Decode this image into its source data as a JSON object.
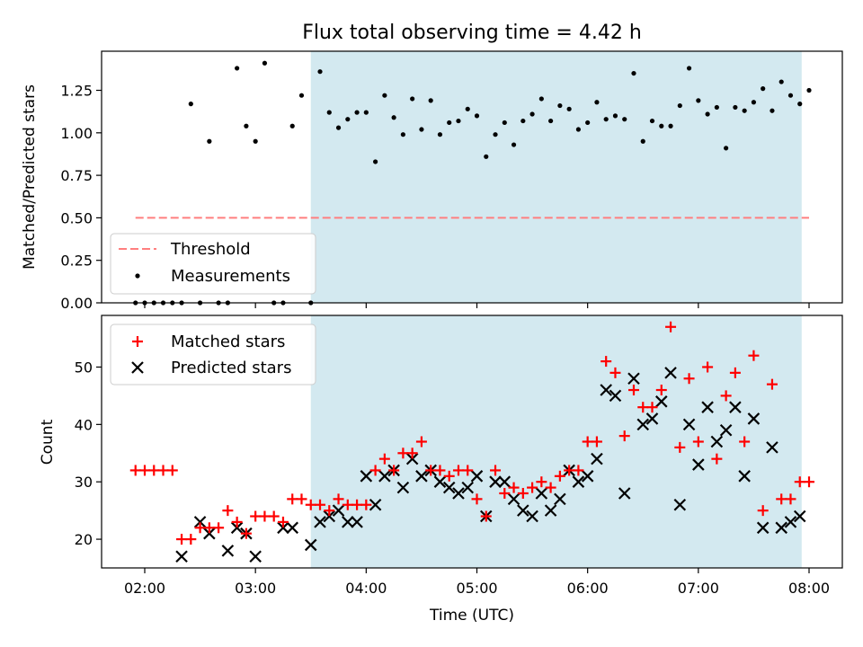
{
  "figure": {
    "title": "Flux total observing time = 4.42 h",
    "xlabel": "Time (UTC)",
    "x_ticks": [
      "02:00",
      "03:00",
      "04:00",
      "05:00",
      "06:00",
      "07:00",
      "08:00"
    ],
    "shaded_region": {
      "x_start": "03:30",
      "x_end": "07:56",
      "color": "#d3e9f0"
    }
  },
  "chart_data": [
    {
      "type": "scatter",
      "ylabel": "Matched/Predicted stars",
      "ylim": [
        0,
        1.48
      ],
      "y_ticks": [
        "0.00",
        "0.25",
        "0.50",
        "0.75",
        "1.00",
        "1.25"
      ],
      "legend": {
        "placement": "lower-left",
        "entries": [
          "Threshold",
          "Measurements"
        ]
      },
      "threshold": {
        "name": "Threshold",
        "value": 0.5,
        "x_start": "01:55",
        "x_end": "08:00",
        "color": "#ff7f7f",
        "style": "dashed"
      },
      "series": [
        {
          "name": "Measurements",
          "color": "#000000",
          "marker": "dot",
          "x": [
            "01:55",
            "02:00",
            "02:05",
            "02:10",
            "02:15",
            "02:20",
            "02:25",
            "02:30",
            "02:35",
            "02:40",
            "02:45",
            "02:50",
            "02:55",
            "03:00",
            "03:05",
            "03:10",
            "03:15",
            "03:20",
            "03:25",
            "03:30",
            "03:35",
            "03:40",
            "03:45",
            "03:50",
            "03:55",
            "04:00",
            "04:05",
            "04:10",
            "04:15",
            "04:20",
            "04:25",
            "04:30",
            "04:35",
            "04:40",
            "04:45",
            "04:50",
            "04:55",
            "05:00",
            "05:05",
            "05:10",
            "05:15",
            "05:20",
            "05:25",
            "05:30",
            "05:35",
            "05:40",
            "05:45",
            "05:50",
            "05:55",
            "06:00",
            "06:05",
            "06:10",
            "06:15",
            "06:20",
            "06:25",
            "06:30",
            "06:35",
            "06:40",
            "06:45",
            "06:50",
            "06:55",
            "07:00",
            "07:05",
            "07:10",
            "07:15",
            "07:20",
            "07:25",
            "07:30",
            "07:35",
            "07:40",
            "07:45",
            "07:50",
            "07:55",
            "08:00"
          ],
          "y": [
            0,
            0,
            0,
            0,
            0,
            0,
            1.17,
            0,
            0.95,
            0,
            0,
            1.38,
            1.04,
            0.95,
            1.41,
            0,
            0,
            1.04,
            1.22,
            0,
            1.36,
            1.12,
            1.03,
            1.08,
            1.12,
            1.12,
            0.83,
            1.22,
            1.09,
            0.99,
            1.2,
            1.02,
            1.19,
            0.99,
            1.06,
            1.07,
            1.14,
            1.1,
            0.86,
            0.99,
            1.06,
            0.93,
            1.07,
            1.11,
            1.2,
            1.07,
            1.16,
            1.14,
            1.02,
            1.06,
            1.18,
            1.08,
            1.1,
            1.08,
            1.35,
            0.95,
            1.07,
            1.04,
            1.04,
            1.16,
            1.38,
            1.19,
            1.11,
            1.15,
            0.91,
            1.15,
            1.13,
            1.18,
            1.26,
            1.13,
            1.3,
            1.22,
            1.17,
            1.25
          ]
        }
      ]
    },
    {
      "type": "scatter",
      "ylabel": "Count",
      "ylim": [
        15,
        59
      ],
      "y_ticks": [
        "20",
        "30",
        "40",
        "50"
      ],
      "legend": {
        "placement": "top-left",
        "entries": [
          "Matched stars",
          "Predicted stars"
        ]
      },
      "series": [
        {
          "name": "Matched stars",
          "color": "#ff0000",
          "marker": "plus",
          "x": [
            "01:55",
            "02:00",
            "02:05",
            "02:10",
            "02:15",
            "02:20",
            "02:25",
            "02:30",
            "02:35",
            "02:40",
            "02:45",
            "02:50",
            "02:55",
            "03:00",
            "03:05",
            "03:10",
            "03:15",
            "03:20",
            "03:25",
            "03:30",
            "03:35",
            "03:40",
            "03:45",
            "03:50",
            "03:55",
            "04:00",
            "04:05",
            "04:10",
            "04:15",
            "04:20",
            "04:25",
            "04:30",
            "04:35",
            "04:40",
            "04:45",
            "04:50",
            "04:55",
            "05:00",
            "05:05",
            "05:10",
            "05:15",
            "05:20",
            "05:25",
            "05:30",
            "05:35",
            "05:40",
            "05:45",
            "05:50",
            "05:55",
            "06:00",
            "06:05",
            "06:10",
            "06:15",
            "06:20",
            "06:25",
            "06:30",
            "06:35",
            "06:40",
            "06:45",
            "06:50",
            "06:55",
            "07:00",
            "07:05",
            "07:10",
            "07:15",
            "07:20",
            "07:25",
            "07:30",
            "07:35",
            "07:40",
            "07:45",
            "07:50",
            "07:55",
            "08:00"
          ],
          "y": [
            32,
            32,
            32,
            32,
            32,
            20,
            20,
            22,
            22,
            22,
            25,
            23,
            21,
            24,
            24,
            24,
            23,
            27,
            27,
            26,
            26,
            25,
            27,
            26,
            26,
            26,
            32,
            34,
            32,
            35,
            35,
            37,
            32,
            32,
            31,
            32,
            32,
            27,
            24,
            32,
            28,
            29,
            28,
            29,
            30,
            29,
            31,
            32,
            32,
            37,
            37,
            51,
            49,
            38,
            46,
            43,
            43,
            46,
            57,
            36,
            48,
            37,
            50,
            34,
            45,
            49,
            37,
            52,
            25,
            47,
            27,
            27,
            30,
            30
          ]
        },
        {
          "name": "Predicted stars",
          "color": "#000000",
          "marker": "x",
          "x": [
            "02:20",
            "02:30",
            "02:35",
            "02:45",
            "02:50",
            "02:55",
            "03:00",
            "03:15",
            "03:20",
            "03:30",
            "03:35",
            "03:40",
            "03:45",
            "03:50",
            "03:55",
            "04:00",
            "04:05",
            "04:10",
            "04:15",
            "04:20",
            "04:25",
            "04:30",
            "04:35",
            "04:40",
            "04:45",
            "04:50",
            "04:55",
            "05:00",
            "05:05",
            "05:10",
            "05:15",
            "05:20",
            "05:25",
            "05:30",
            "05:35",
            "05:40",
            "05:45",
            "05:50",
            "05:55",
            "06:00",
            "06:05",
            "06:10",
            "06:15",
            "06:20",
            "06:25",
            "06:30",
            "06:35",
            "06:40",
            "06:45",
            "06:50",
            "06:55",
            "07:00",
            "07:05",
            "07:10",
            "07:15",
            "07:20",
            "07:25",
            "07:30",
            "07:35",
            "07:40",
            "07:45",
            "07:50",
            "07:55"
          ],
          "y": [
            17,
            23,
            21,
            18,
            22,
            21,
            17,
            22,
            22,
            19,
            23,
            24,
            25,
            23,
            23,
            31,
            26,
            31,
            32,
            29,
            34,
            31,
            32,
            30,
            29,
            28,
            29,
            31,
            24,
            30,
            30,
            27,
            25,
            24,
            28,
            25,
            27,
            32,
            30,
            31,
            34,
            46,
            45,
            28,
            48,
            40,
            41,
            44,
            49,
            26,
            40,
            33,
            43,
            37,
            39,
            43,
            31,
            41,
            22,
            36,
            22,
            23,
            24
          ]
        }
      ]
    }
  ]
}
